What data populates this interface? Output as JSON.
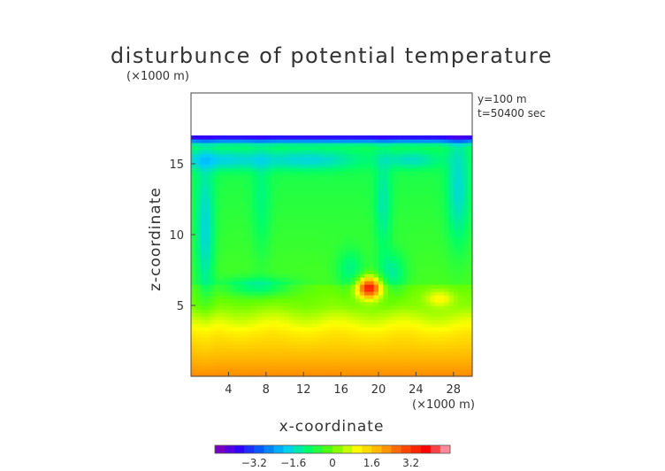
{
  "chart_data": {
    "type": "heatmap",
    "title": "disturbunce of potential temperature",
    "units_label": "(×1000 m)",
    "annotation": [
      "y=100 m",
      "t=50400 sec"
    ],
    "xlabel": "x-coordinate",
    "ylabel": "z-coordinate",
    "x_unit": "(×1000 m)",
    "xlim": [
      0,
      30
    ],
    "ylim": [
      0,
      20
    ],
    "x_ticks": [
      4,
      8,
      12,
      16,
      20,
      24,
      28
    ],
    "y_ticks": [
      5,
      10,
      15
    ],
    "field_top": 17,
    "colorbar": {
      "range": [
        -4.8,
        4.8
      ],
      "ticks": [
        "−3.2",
        "−1.6",
        "0",
        "1.6",
        "3.2"
      ],
      "tick_values": [
        -3.2,
        -1.6,
        0,
        1.6,
        3.2
      ],
      "colors": [
        "#8a00b0",
        "#3300ff",
        "#0066ff",
        "#00ccff",
        "#00ff66",
        "#66ff00",
        "#ffff00",
        "#ffb000",
        "#ff5000",
        "#ff0000",
        "#ffb0c0"
      ]
    }
  }
}
